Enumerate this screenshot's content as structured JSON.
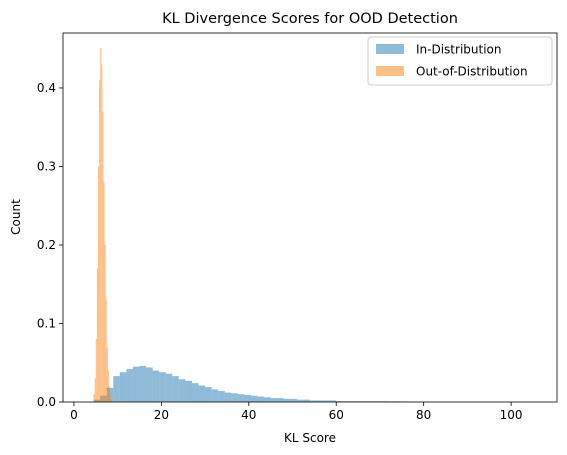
{
  "chart_data": {
    "type": "histogram",
    "title": "KL Divergence Scores for OOD Detection",
    "xlabel": "KL Score",
    "ylabel": "Count",
    "xlim": [
      -2.5,
      110.5
    ],
    "ylim": [
      0,
      0.47
    ],
    "xticks": [
      0,
      20,
      40,
      60,
      80,
      100
    ],
    "yticks": [
      0.0,
      0.1,
      0.2,
      0.3,
      0.4
    ],
    "xtick_labels": [
      "0",
      "20",
      "40",
      "60",
      "80",
      "100"
    ],
    "ytick_labels": [
      "0.0",
      "0.1",
      "0.2",
      "0.3",
      "0.4"
    ],
    "legend_position": "top-right",
    "series": [
      {
        "name": "In-Distribution",
        "color": "#1f77b4",
        "alpha": 0.5,
        "bin_edges": [
          4.5,
          6.0,
          7.5,
          9.0,
          10.5,
          12.0,
          13.5,
          15.0,
          16.5,
          18.0,
          19.5,
          21.0,
          22.5,
          24.0,
          25.5,
          27.0,
          28.5,
          30.0,
          31.5,
          33.0,
          34.5,
          36.0,
          37.5,
          39.0,
          40.5,
          42.0,
          43.5,
          45.0,
          46.5,
          48.0,
          49.5,
          51.0,
          52.5,
          54.0,
          55.5,
          57.0,
          58.5,
          60.0,
          61.5,
          63.0,
          64.5,
          66.0,
          67.5,
          69.0,
          70.5,
          72.0,
          73.5,
          75.0,
          76.5,
          78.0,
          79.5,
          81.0,
          82.5,
          84.0,
          85.5,
          87.0,
          88.5,
          90.0,
          91.5,
          93.0,
          94.5,
          96.0,
          97.5,
          99.0,
          100.5,
          102.0,
          103.5,
          105.0,
          106.5
        ],
        "values": [
          0.003,
          0.008,
          0.018,
          0.033,
          0.038,
          0.042,
          0.045,
          0.046,
          0.044,
          0.04,
          0.038,
          0.036,
          0.033,
          0.029,
          0.027,
          0.024,
          0.021,
          0.019,
          0.016,
          0.014,
          0.012,
          0.011,
          0.01,
          0.009,
          0.008,
          0.007,
          0.006,
          0.005,
          0.005,
          0.004,
          0.004,
          0.003,
          0.003,
          0.002,
          0.002,
          0.002,
          0.002,
          0.001,
          0.001,
          0.001,
          0.001,
          0.001,
          0.001,
          0.001,
          0.001,
          0.0008,
          0.0008,
          0.0006,
          0.0006,
          0.0005,
          0.0005,
          0.0004,
          0.0004,
          0.0003,
          0.0003,
          0.0003,
          0.0002,
          0.0002,
          0.0002,
          0.0002,
          0.0001,
          0.0001,
          0.0001,
          0.0001,
          0.0001,
          0.0001,
          0.0001,
          0.0001
        ]
      },
      {
        "name": "Out-of-Distribution",
        "color": "#ff7f0e",
        "alpha": 0.5,
        "bin_edges": [
          4.5,
          4.75,
          5.0,
          5.25,
          5.5,
          5.75,
          6.0,
          6.25,
          6.5,
          6.75,
          7.0,
          7.25,
          7.5,
          7.75,
          8.0,
          8.25,
          8.5,
          8.75
        ],
        "values": [
          0.01,
          0.03,
          0.08,
          0.17,
          0.3,
          0.41,
          0.45,
          0.43,
          0.37,
          0.28,
          0.2,
          0.13,
          0.07,
          0.04,
          0.02,
          0.008,
          0.003
        ]
      }
    ]
  }
}
